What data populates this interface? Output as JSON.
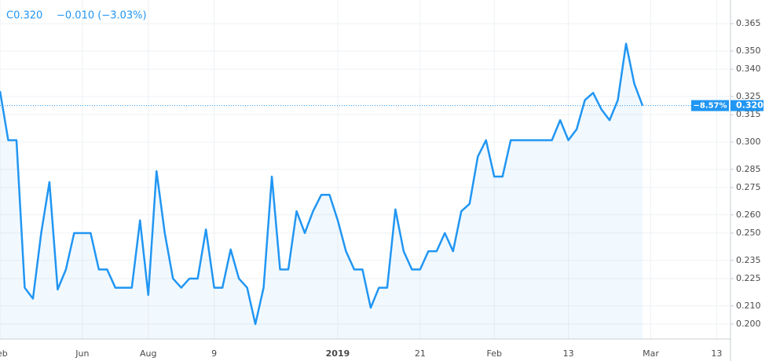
{
  "chart_data": {
    "type": "line",
    "header": "C0.320",
    "change": "−0.010 (−3.03%)",
    "categories": [
      "Feb",
      null,
      null,
      null,
      null,
      null,
      null,
      null,
      null,
      null,
      "Jun",
      null,
      null,
      null,
      null,
      null,
      null,
      null,
      "Aug",
      null,
      null,
      null,
      null,
      null,
      null,
      null,
      "9",
      null,
      null,
      null,
      null,
      null,
      null,
      null,
      null,
      null,
      null,
      null,
      null,
      null,
      null,
      "2019",
      null,
      null,
      null,
      null,
      null,
      null,
      null,
      null,
      null,
      "21",
      null,
      null,
      null,
      null,
      null,
      null,
      null,
      null,
      "Feb",
      null,
      null,
      null,
      null,
      null,
      null,
      null,
      null,
      "13",
      null,
      null,
      null,
      null,
      null,
      null,
      null,
      null,
      null,
      "Mar",
      null,
      null,
      null,
      null,
      null,
      null,
      null,
      "13",
      null
    ],
    "values": [
      0.328,
      0.301,
      0.301,
      0.22,
      0.214,
      0.25,
      0.278,
      0.219,
      0.23,
      0.25,
      0.25,
      0.25,
      0.23,
      0.23,
      0.22,
      0.22,
      0.22,
      0.257,
      0.216,
      0.284,
      0.25,
      0.225,
      0.22,
      0.225,
      0.225,
      0.252,
      0.22,
      0.22,
      0.241,
      0.225,
      0.22,
      0.2,
      0.22,
      0.281,
      0.23,
      0.23,
      0.262,
      0.25,
      0.262,
      0.271,
      0.271,
      0.257,
      0.24,
      0.23,
      0.23,
      0.209,
      0.22,
      0.22,
      0.263,
      0.24,
      0.23,
      0.23,
      0.24,
      0.24,
      0.25,
      0.24,
      0.262,
      0.266,
      0.292,
      0.301,
      0.281,
      0.281,
      0.301,
      0.301,
      0.301,
      0.301,
      0.301,
      0.301,
      0.312,
      0.301,
      0.307,
      0.323,
      0.327,
      0.318,
      0.312,
      0.323,
      0.354,
      0.332,
      0.32,
      null,
      null,
      null,
      null,
      null,
      null,
      null,
      null,
      null,
      null
    ],
    "color": "#2196f3",
    "ylim": [
      0.1918,
      0.378
    ],
    "yticks": [
      {
        "value": 0.2,
        "label": "0.200"
      },
      {
        "value": 0.21,
        "label": "0.210"
      },
      0.225,
      0.235,
      {
        "value": 0.25,
        "label": "0.250"
      },
      {
        "value": 0.26,
        "label": "0.260"
      },
      0.275,
      0.285,
      {
        "value": 0.3,
        "label": "0.300"
      },
      0.315,
      0.325,
      {
        "value": 0.34,
        "label": "0.340"
      },
      {
        "value": 0.35,
        "label": "0.350"
      },
      0.365
    ],
    "grid": true,
    "last_price": {
      "value": 0.32,
      "label": "0.320",
      "change_label": "−8.57%"
    }
  }
}
